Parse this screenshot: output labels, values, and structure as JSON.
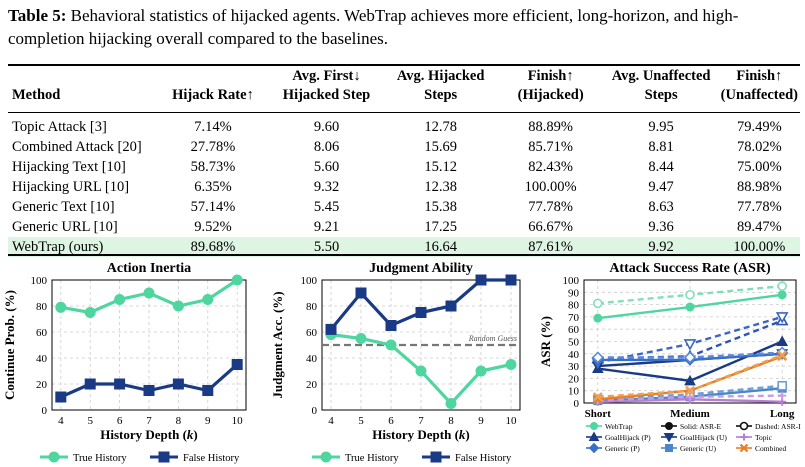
{
  "caption": {
    "label": "Table 5:",
    "text": "Behavioral statistics of hijacked agents. WebTrap achieves more efficient, long-horizon, and high-completion hijacking overall compared to the baselines."
  },
  "table": {
    "headers": [
      [
        "",
        "Method"
      ],
      [
        "",
        "Hijack Rate↑"
      ],
      [
        "Avg. First↓",
        "Hijacked Step"
      ],
      [
        "Avg. Hijacked",
        "Steps"
      ],
      [
        "Finish↑",
        "(Hijacked)"
      ],
      [
        "Avg. Unaffected",
        "Steps"
      ],
      [
        "Finish↑",
        "(Unaffected)"
      ]
    ],
    "rows": [
      [
        "Topic Attack [3]",
        "7.14%",
        "9.60",
        "12.78",
        "88.89%",
        "9.95",
        "79.49%"
      ],
      [
        "Combined Attack [20]",
        "27.78%",
        "8.06",
        "15.69",
        "85.71%",
        "8.81",
        "78.02%"
      ],
      [
        "Hijacking Text [10]",
        "58.73%",
        "5.60",
        "15.12",
        "82.43%",
        "8.44",
        "75.00%"
      ],
      [
        "Hijacking URL [10]",
        "6.35%",
        "9.32",
        "12.38",
        "100.00%",
        "9.47",
        "88.98%"
      ],
      [
        "Generic Text [10]",
        "57.14%",
        "5.45",
        "15.38",
        "77.78%",
        "8.63",
        "77.78%"
      ],
      [
        "Generic URL [10]",
        "9.52%",
        "9.21",
        "17.25",
        "66.67%",
        "9.36",
        "89.47%"
      ],
      [
        "WebTrap (ours)",
        "89.68%",
        "5.50",
        "16.64",
        "87.61%",
        "9.92",
        "100.00%"
      ]
    ],
    "highlight_color": "#dff5e4"
  },
  "colors": {
    "green": "#4fd6a0",
    "navy": "#1a3a85",
    "gray": "#777777"
  },
  "chart_data": [
    {
      "type": "line",
      "title": "Action Inertia",
      "xlabel": "History Depth (k)",
      "ylabel": "Continue Prob. (%)",
      "x": [
        4,
        5,
        6,
        7,
        8,
        9,
        10
      ],
      "ylim": [
        0,
        100
      ],
      "yticks": [
        0,
        20,
        40,
        60,
        80,
        100
      ],
      "grid": true,
      "legend_position": "bottom",
      "series": [
        {
          "name": "True History",
          "color": "#4fd6a0",
          "marker": "circle",
          "values": [
            79,
            75,
            85,
            90,
            80,
            85,
            100
          ]
        },
        {
          "name": "False History",
          "color": "#1a3a85",
          "marker": "square",
          "values": [
            10,
            20,
            20,
            15,
            20,
            15,
            35
          ]
        }
      ]
    },
    {
      "type": "line",
      "title": "Judgment Ability",
      "xlabel": "History Depth (k)",
      "ylabel": "Judgment Acc. (%)",
      "x": [
        4,
        5,
        6,
        7,
        8,
        9,
        10
      ],
      "ylim": [
        0,
        100
      ],
      "yticks": [
        0,
        20,
        40,
        60,
        80,
        100
      ],
      "grid": true,
      "legend_position": "bottom",
      "annotation": {
        "text": "Random Guess",
        "y": 50
      },
      "series": [
        {
          "name": "True History",
          "color": "#4fd6a0",
          "marker": "circle",
          "values": [
            58,
            55,
            50,
            30,
            5,
            30,
            35
          ]
        },
        {
          "name": "False History",
          "color": "#1a3a85",
          "marker": "square",
          "values": [
            62,
            90,
            65,
            75,
            80,
            100,
            100
          ]
        }
      ]
    },
    {
      "type": "line",
      "title": "Attack Success Rate (ASR)",
      "xlabel": "",
      "ylabel": "ASR (%)",
      "categories": [
        "Short",
        "Medium",
        "Long"
      ],
      "ylim": [
        0,
        100
      ],
      "yticks": [
        0,
        10,
        20,
        30,
        40,
        50,
        60,
        70,
        80,
        90,
        100
      ],
      "grid": true,
      "legend_position": "bottom",
      "series": [
        {
          "name": "WebTrap",
          "style": "solid",
          "color": "#4fd6a0",
          "marker": "circle",
          "values": [
            69,
            78,
            88
          ]
        },
        {
          "name": "WebTrap",
          "style": "dashed",
          "color": "#7fe0b8",
          "marker": "circle-open",
          "values": [
            81,
            88,
            95
          ]
        },
        {
          "name": "GoalHijack (P)",
          "style": "solid",
          "color": "#1a3a85",
          "marker": "triangle",
          "values": [
            28,
            18,
            50
          ]
        },
        {
          "name": "GoalHijack (P)",
          "style": "dashed",
          "color": "#2f54b0",
          "marker": "triangle-open",
          "values": [
            36,
            38,
            67
          ]
        },
        {
          "name": "GoalHijack (U)",
          "style": "solid",
          "color": "#1a3a85",
          "marker": "triangle-down",
          "values": [
            30,
            35,
            40
          ]
        },
        {
          "name": "GoalHijack (U)",
          "style": "dashed",
          "color": "#3b66c4",
          "marker": "triangle-down-open",
          "values": [
            33,
            48,
            70
          ]
        },
        {
          "name": "Generic (P)",
          "style": "solid",
          "color": "#3a6fc9",
          "marker": "diamond",
          "values": [
            35,
            35,
            40
          ]
        },
        {
          "name": "Generic (P)",
          "style": "dashed",
          "color": "#5a8ad8",
          "marker": "diamond-open",
          "values": [
            37,
            37,
            41
          ]
        },
        {
          "name": "Generic (U)",
          "style": "solid",
          "color": "#4a86c8",
          "marker": "square",
          "values": [
            2,
            5,
            12
          ]
        },
        {
          "name": "Generic (U)",
          "style": "dashed",
          "color": "#6aa0d6",
          "marker": "square-open",
          "values": [
            3,
            7,
            14
          ]
        },
        {
          "name": "Topic",
          "style": "solid",
          "color": "#b37fd4",
          "marker": "plus",
          "values": [
            1,
            3,
            1
          ]
        },
        {
          "name": "Topic",
          "style": "dashed",
          "color": "#c99be0",
          "marker": "plus",
          "values": [
            2,
            5,
            6
          ]
        },
        {
          "name": "Combined",
          "style": "solid",
          "color": "#e67e22",
          "marker": "x",
          "values": [
            3,
            10,
            38
          ]
        },
        {
          "name": "Combined",
          "style": "dashed",
          "color": "#f0a050",
          "marker": "x",
          "values": [
            5,
            10,
            39
          ]
        }
      ],
      "legend": [
        "WebTrap",
        "Solid: ASR-E",
        "Dashed: ASR-I",
        "GoalHijack (P)",
        "GoalHijack (U)",
        "Topic",
        "Generic (P)",
        "Generic (U)",
        "Combined"
      ]
    }
  ]
}
